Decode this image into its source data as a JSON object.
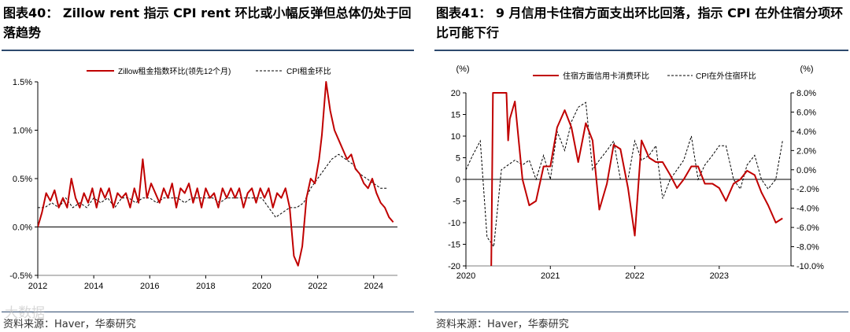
{
  "left": {
    "title": "图表40：  Zillow rent 指示 CPI rent 环比或小幅反弹但总体仍处于回落趋势",
    "source": "资料来源：Haver，华泰研究",
    "watermark": "大数据"
  },
  "right": {
    "title": "图表41：  9 月信用卡住宿方面支出环比回落，指示 CPI 在外住宿分项环比可能下行",
    "source": "资料来源：Haver，华泰研究"
  },
  "colors": {
    "red": "#c00000",
    "dashed": "#000000",
    "axis": "#000000",
    "rule": "#2e4a6e"
  },
  "chart_data": [
    {
      "type": "line",
      "xlim": [
        2012.0,
        2024.85
      ],
      "ylim": [
        -0.5,
        1.5
      ],
      "yticks": [
        {
          "v": -0.5,
          "label": "-0.5%"
        },
        {
          "v": 0.0,
          "label": "0.0%"
        },
        {
          "v": 0.5,
          "label": "0.5%"
        },
        {
          "v": 1.0,
          "label": "1.0%"
        },
        {
          "v": 1.5,
          "label": "1.5%"
        }
      ],
      "xticks": [
        {
          "v": 2012,
          "label": "2012"
        },
        {
          "v": 2014,
          "label": "2014"
        },
        {
          "v": 2016,
          "label": "2016"
        },
        {
          "v": 2018,
          "label": "2018"
        },
        {
          "v": 2020,
          "label": "2020"
        },
        {
          "v": 2022,
          "label": "2022"
        },
        {
          "v": 2024,
          "label": "2024"
        }
      ],
      "series": [
        {
          "name": "Zillow租金指数环比(领先12个月)",
          "style": "solid",
          "x": [
            2012.0,
            2012.15,
            2012.3,
            2012.45,
            2012.6,
            2012.75,
            2012.9,
            2013.05,
            2013.2,
            2013.35,
            2013.5,
            2013.65,
            2013.8,
            2013.95,
            2014.1,
            2014.25,
            2014.4,
            2014.55,
            2014.7,
            2014.85,
            2015.0,
            2015.15,
            2015.3,
            2015.45,
            2015.6,
            2015.75,
            2015.9,
            2016.05,
            2016.2,
            2016.35,
            2016.5,
            2016.65,
            2016.8,
            2016.95,
            2017.1,
            2017.25,
            2017.4,
            2017.55,
            2017.7,
            2017.85,
            2018.0,
            2018.15,
            2018.3,
            2018.45,
            2018.6,
            2018.75,
            2018.9,
            2019.05,
            2019.2,
            2019.35,
            2019.5,
            2019.65,
            2019.8,
            2019.95,
            2020.1,
            2020.25,
            2020.4,
            2020.55,
            2020.7,
            2020.85,
            2021.0,
            2021.15,
            2021.3,
            2021.45,
            2021.6,
            2021.75,
            2021.9,
            2022.05,
            2022.15,
            2022.3,
            2022.45,
            2022.6,
            2022.75,
            2022.9,
            2023.05,
            2023.2,
            2023.35,
            2023.5,
            2023.65,
            2023.8,
            2023.95,
            2024.1,
            2024.25,
            2024.4,
            2024.55,
            2024.7
          ],
          "y": [
            0.0,
            0.15,
            0.35,
            0.27,
            0.38,
            0.2,
            0.3,
            0.2,
            0.5,
            0.3,
            0.2,
            0.35,
            0.25,
            0.4,
            0.2,
            0.4,
            0.3,
            0.4,
            0.2,
            0.35,
            0.3,
            0.35,
            0.2,
            0.4,
            0.25,
            0.7,
            0.3,
            0.45,
            0.35,
            0.25,
            0.4,
            0.3,
            0.45,
            0.2,
            0.4,
            0.35,
            0.45,
            0.25,
            0.4,
            0.2,
            0.4,
            0.3,
            0.35,
            0.2,
            0.4,
            0.3,
            0.4,
            0.3,
            0.4,
            0.2,
            0.35,
            0.4,
            0.25,
            0.4,
            0.3,
            0.4,
            0.2,
            0.35,
            0.3,
            0.4,
            0.2,
            -0.3,
            -0.4,
            -0.2,
            0.3,
            0.5,
            0.45,
            0.7,
            0.95,
            1.5,
            1.2,
            1.0,
            0.9,
            0.8,
            0.7,
            0.75,
            0.6,
            0.55,
            0.45,
            0.4,
            0.5,
            0.35,
            0.25,
            0.2,
            0.1,
            0.05
          ]
        },
        {
          "name": "CPI租金环比",
          "style": "dashed",
          "x": [
            2012.0,
            2012.25,
            2012.5,
            2012.75,
            2013.0,
            2013.25,
            2013.5,
            2013.75,
            2014.0,
            2014.25,
            2014.5,
            2014.75,
            2015.0,
            2015.25,
            2015.5,
            2015.75,
            2016.0,
            2016.25,
            2016.5,
            2016.75,
            2017.0,
            2017.25,
            2017.5,
            2017.75,
            2018.0,
            2018.25,
            2018.5,
            2018.75,
            2019.0,
            2019.25,
            2019.5,
            2019.75,
            2020.0,
            2020.25,
            2020.5,
            2020.75,
            2021.0,
            2021.25,
            2021.5,
            2021.75,
            2022.0,
            2022.25,
            2022.5,
            2022.75,
            2023.0,
            2023.25,
            2023.5,
            2023.75,
            2024.0,
            2024.25,
            2024.5
          ],
          "y": [
            0.2,
            0.2,
            0.25,
            0.2,
            0.3,
            0.2,
            0.25,
            0.2,
            0.3,
            0.25,
            0.3,
            0.2,
            0.3,
            0.3,
            0.25,
            0.3,
            0.3,
            0.25,
            0.3,
            0.3,
            0.3,
            0.25,
            0.3,
            0.3,
            0.3,
            0.3,
            0.25,
            0.3,
            0.3,
            0.3,
            0.3,
            0.3,
            0.3,
            0.2,
            0.1,
            0.15,
            0.2,
            0.2,
            0.25,
            0.4,
            0.5,
            0.6,
            0.7,
            0.75,
            0.7,
            0.65,
            0.55,
            0.5,
            0.45,
            0.4,
            0.4
          ]
        }
      ]
    },
    {
      "type": "line",
      "xlim": [
        2020.0,
        2023.85
      ],
      "ylim": [
        -20,
        20
      ],
      "y2lim": [
        -10,
        8
      ],
      "ylabel": "(%)",
      "y2label": "(%)",
      "yticks": [
        {
          "v": -20,
          "label": "-20"
        },
        {
          "v": -15,
          "label": "-15"
        },
        {
          "v": -10,
          "label": "-10"
        },
        {
          "v": -5,
          "label": "-5"
        },
        {
          "v": 0,
          "label": "0"
        },
        {
          "v": 5,
          "label": "5"
        },
        {
          "v": 10,
          "label": "10"
        },
        {
          "v": 15,
          "label": "15"
        },
        {
          "v": 20,
          "label": "20"
        }
      ],
      "y2ticks": [
        {
          "v": -10,
          "label": "-10.0%"
        },
        {
          "v": -8,
          "label": "-8.0%"
        },
        {
          "v": -6,
          "label": "-6.0%"
        },
        {
          "v": -4,
          "label": "-4.0%"
        },
        {
          "v": -2,
          "label": "-2.0%"
        },
        {
          "v": 0,
          "label": "0.0%"
        },
        {
          "v": 2,
          "label": "2.0%"
        },
        {
          "v": 4,
          "label": "4.0%"
        },
        {
          "v": 6,
          "label": "6.0%"
        },
        {
          "v": 8,
          "label": "8.0%"
        }
      ],
      "xticks": [
        {
          "v": 2020,
          "label": "2020"
        },
        {
          "v": 2021,
          "label": "2021"
        },
        {
          "v": 2022,
          "label": "2022"
        },
        {
          "v": 2023,
          "label": "2023"
        }
      ],
      "series": [
        {
          "name": "住宿方面信用卡消费环比",
          "style": "solid",
          "axis": "left",
          "x": [
            2020.3,
            2020.32,
            2020.33,
            2020.48,
            2020.5,
            2020.52,
            2020.58,
            2020.67,
            2020.75,
            2020.83,
            2020.92,
            2021.0,
            2021.08,
            2021.17,
            2021.25,
            2021.33,
            2021.42,
            2021.5,
            2021.58,
            2021.67,
            2021.75,
            2021.83,
            2021.92,
            2022.0,
            2022.08,
            2022.17,
            2022.25,
            2022.33,
            2022.42,
            2022.5,
            2022.58,
            2022.67,
            2022.75,
            2022.83,
            2022.92,
            2023.0,
            2023.08,
            2023.17,
            2023.25,
            2023.33,
            2023.42,
            2023.5,
            2023.58,
            2023.67,
            2023.75
          ],
          "y": [
            -20,
            20,
            20,
            20,
            9,
            14,
            18,
            0,
            -6,
            -5,
            3,
            3,
            12,
            16,
            12,
            4,
            13,
            9,
            -7,
            -1,
            8,
            7,
            -2,
            -13,
            9,
            5,
            4,
            4,
            1,
            -2,
            0,
            3,
            3,
            -1,
            -1,
            -2,
            -5,
            -1,
            0,
            2,
            1,
            -3,
            -6,
            -10,
            -9
          ]
        },
        {
          "name": "CPI在外住宿环比",
          "style": "dashed",
          "axis": "right",
          "x": [
            2020.0,
            2020.08,
            2020.17,
            2020.25,
            2020.33,
            2020.42,
            2020.5,
            2020.58,
            2020.67,
            2020.75,
            2020.83,
            2020.92,
            2021.0,
            2021.08,
            2021.17,
            2021.25,
            2021.33,
            2021.42,
            2021.5,
            2021.58,
            2021.67,
            2021.75,
            2021.83,
            2021.92,
            2022.0,
            2022.08,
            2022.17,
            2022.25,
            2022.33,
            2022.42,
            2022.5,
            2022.58,
            2022.67,
            2022.75,
            2022.83,
            2022.92,
            2023.0,
            2023.08,
            2023.17,
            2023.25,
            2023.33,
            2023.42,
            2023.5,
            2023.58,
            2023.67,
            2023.75
          ],
          "y": [
            0.0,
            1.5,
            3.0,
            -7.0,
            -8.0,
            0.0,
            0.5,
            1.0,
            0.5,
            1.0,
            -1.0,
            1.5,
            -1.0,
            4.0,
            2.0,
            5.0,
            6.5,
            7.0,
            0.0,
            1.0,
            2.0,
            3.0,
            -1.0,
            -1.0,
            3.0,
            1.0,
            1.5,
            2.5,
            -3.0,
            -1.0,
            0.0,
            1.0,
            3.5,
            -1.0,
            0.5,
            1.5,
            2.5,
            2.5,
            -1.0,
            -2.0,
            0.5,
            1.5,
            -1.0,
            -2.0,
            -1.0,
            3.0
          ]
        }
      ]
    }
  ]
}
